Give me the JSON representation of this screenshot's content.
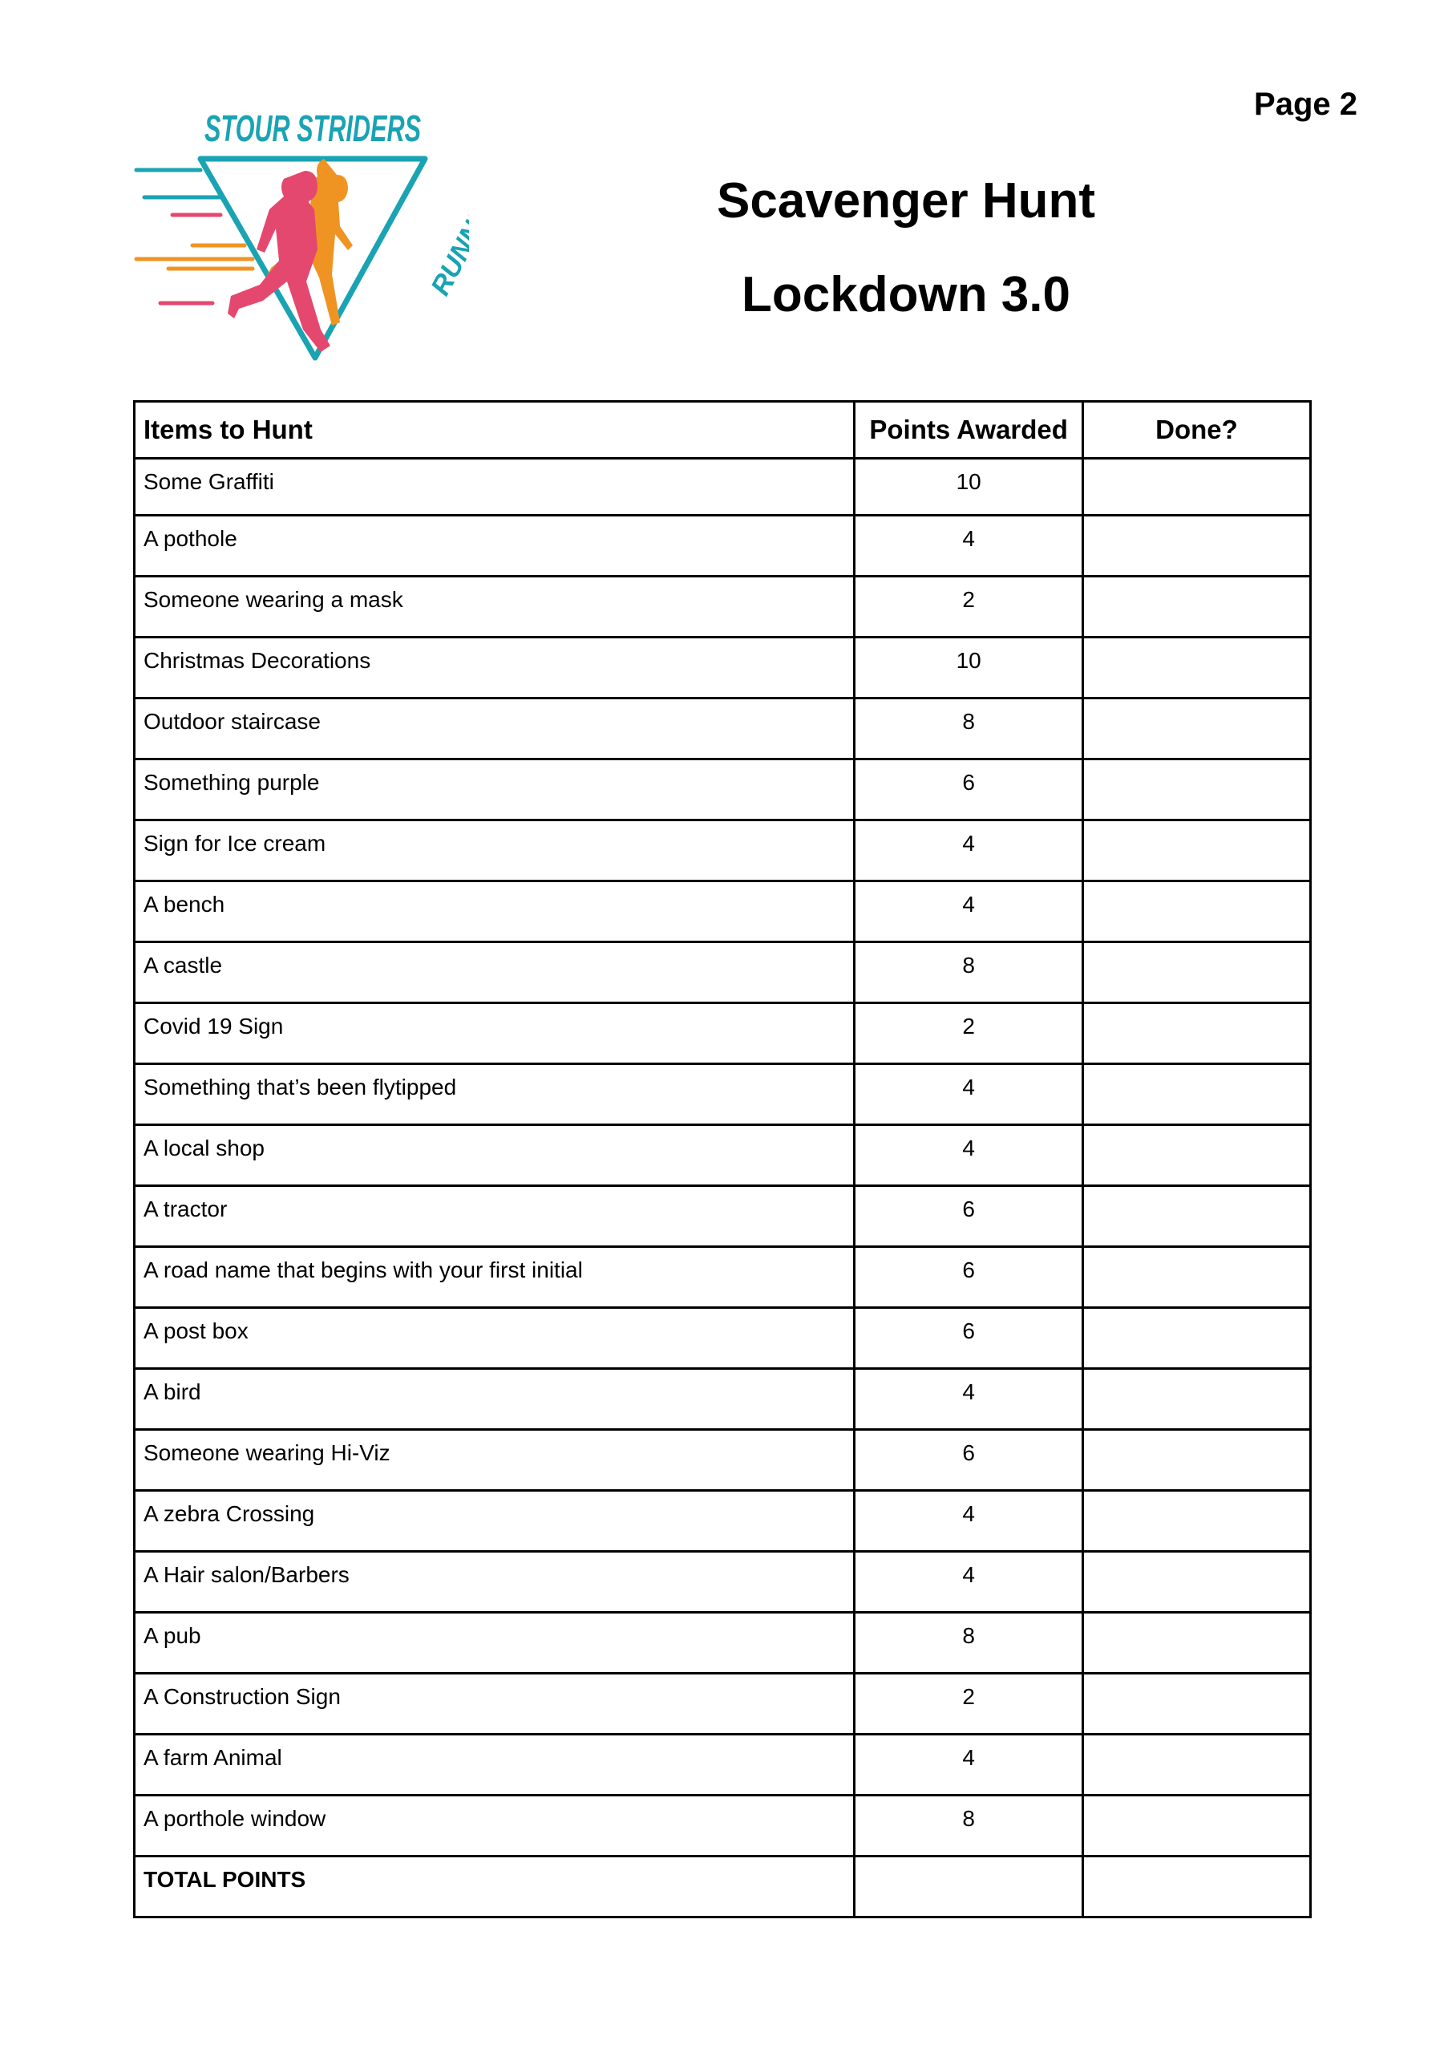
{
  "page_label": "Page 2",
  "logo": {
    "top_text": "STOUR STRIDERS",
    "side_text": "RUNNING CLUB",
    "colors": {
      "teal": "#1aa3b3",
      "pink": "#e5486e",
      "orange": "#ef9423"
    }
  },
  "title": "Scavenger Hunt",
  "subtitle": "Lockdown 3.0",
  "table": {
    "headers": [
      "Items to Hunt",
      "Points Awarded",
      "Done?"
    ],
    "rows": [
      {
        "item": "Some Graffiti",
        "points": "10"
      },
      {
        "item": "A pothole",
        "points": "4"
      },
      {
        "item": "Someone wearing a mask",
        "points": "2"
      },
      {
        "item": "Christmas Decorations",
        "points": "10"
      },
      {
        "item": "Outdoor staircase",
        "points": "8"
      },
      {
        "item": "Something purple",
        "points": "6"
      },
      {
        "item": "Sign for Ice cream",
        "points": "4"
      },
      {
        "item": "A bench",
        "points": "4"
      },
      {
        "item": "A castle",
        "points": "8"
      },
      {
        "item": "Covid 19 Sign",
        "points": "2"
      },
      {
        "item": "Something that’s been flytipped",
        "points": "4"
      },
      {
        "item": "A local shop",
        "points": "4"
      },
      {
        "item": "A tractor",
        "points": "6"
      },
      {
        "item": "A road name that begins with your first initial",
        "points": "6"
      },
      {
        "item": "A post box",
        "points": "6"
      },
      {
        "item": "A bird",
        "points": "4"
      },
      {
        "item": "Someone wearing Hi-Viz",
        "points": "6"
      },
      {
        "item": "A zebra Crossing",
        "points": "4"
      },
      {
        "item": "A Hair salon/Barbers",
        "points": "4"
      },
      {
        "item": "A pub",
        "points": "8"
      },
      {
        "item": "A Construction Sign",
        "points": "2"
      },
      {
        "item": "A farm Animal",
        "points": "4"
      },
      {
        "item": "A porthole window",
        "points": "8"
      }
    ],
    "total_label": "TOTAL POINTS"
  }
}
